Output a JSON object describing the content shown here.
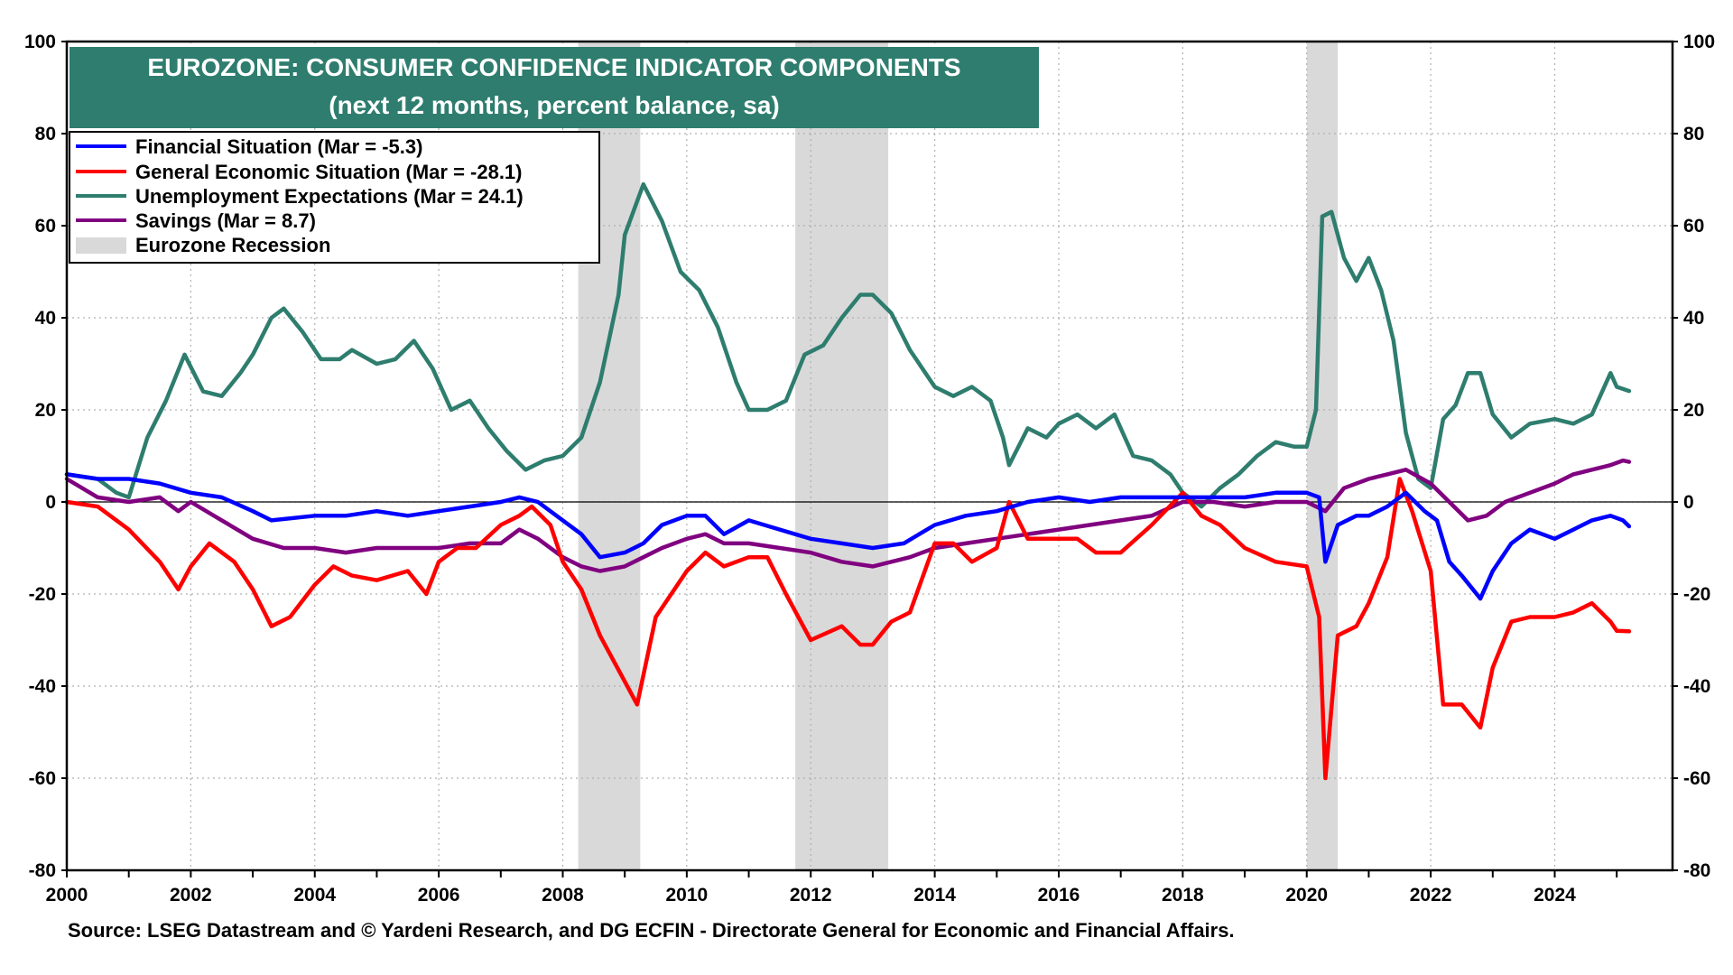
{
  "chart_data": {
    "type": "line",
    "title": "EUROZONE: CONSUMER CONFIDENCE INDICATOR COMPONENTS",
    "subtitle": "(next 12 months, percent balance, sa)",
    "source": "Source: LSEG Datastream and © Yardeni Research, and DG ECFIN - Directorate General for Economic and Financial Affairs.",
    "xlabel": "",
    "ylabel": "",
    "xlim": [
      2000,
      2025.9
    ],
    "ylim": [
      -80,
      100
    ],
    "x_ticks": [
      2000,
      2002,
      2004,
      2006,
      2008,
      2010,
      2012,
      2014,
      2016,
      2018,
      2020,
      2022,
      2024
    ],
    "y_ticks": [
      100,
      80,
      60,
      40,
      20,
      0,
      -20,
      -40,
      -60,
      -80
    ],
    "grid": true,
    "legend_position": "top-left",
    "recessions": [
      {
        "start": 2008.25,
        "end": 2009.25
      },
      {
        "start": 2011.75,
        "end": 2013.25
      },
      {
        "start": 2020.0,
        "end": 2020.5
      }
    ],
    "recession_label": "Eurozone Recession",
    "series": [
      {
        "name": "Financial Situation  (Mar = -5.3)",
        "color": "#0000ff",
        "points": [
          [
            2000,
            6
          ],
          [
            2000.5,
            5
          ],
          [
            2001,
            5
          ],
          [
            2001.5,
            4
          ],
          [
            2002,
            2
          ],
          [
            2002.5,
            1
          ],
          [
            2003,
            -2
          ],
          [
            2003.3,
            -4
          ],
          [
            2004,
            -3
          ],
          [
            2004.5,
            -3
          ],
          [
            2005,
            -2
          ],
          [
            2005.5,
            -3
          ],
          [
            2006,
            -2
          ],
          [
            2006.5,
            -1
          ],
          [
            2007,
            0
          ],
          [
            2007.3,
            1
          ],
          [
            2007.6,
            0
          ],
          [
            2008,
            -4
          ],
          [
            2008.3,
            -7
          ],
          [
            2008.6,
            -12
          ],
          [
            2009,
            -11
          ],
          [
            2009.3,
            -9
          ],
          [
            2009.6,
            -5
          ],
          [
            2010,
            -3
          ],
          [
            2010.3,
            -3
          ],
          [
            2010.6,
            -7
          ],
          [
            2011,
            -4
          ],
          [
            2011.5,
            -6
          ],
          [
            2012,
            -8
          ],
          [
            2012.5,
            -9
          ],
          [
            2013,
            -10
          ],
          [
            2013.5,
            -9
          ],
          [
            2014,
            -5
          ],
          [
            2014.5,
            -3
          ],
          [
            2015,
            -2
          ],
          [
            2015.5,
            0
          ],
          [
            2016,
            1
          ],
          [
            2016.5,
            0
          ],
          [
            2017,
            1
          ],
          [
            2017.5,
            1
          ],
          [
            2018,
            1
          ],
          [
            2018.5,
            1
          ],
          [
            2019,
            1
          ],
          [
            2019.5,
            2
          ],
          [
            2020,
            2
          ],
          [
            2020.2,
            1
          ],
          [
            2020.3,
            -13
          ],
          [
            2020.5,
            -5
          ],
          [
            2020.8,
            -3
          ],
          [
            2021,
            -3
          ],
          [
            2021.3,
            -1
          ],
          [
            2021.6,
            2
          ],
          [
            2021.9,
            -2
          ],
          [
            2022.1,
            -4
          ],
          [
            2022.3,
            -13
          ],
          [
            2022.5,
            -16
          ],
          [
            2022.8,
            -21
          ],
          [
            2023,
            -15
          ],
          [
            2023.3,
            -9
          ],
          [
            2023.6,
            -6
          ],
          [
            2024,
            -8
          ],
          [
            2024.3,
            -6
          ],
          [
            2024.6,
            -4
          ],
          [
            2024.9,
            -3
          ],
          [
            2025.1,
            -4
          ],
          [
            2025.2,
            -5.3
          ]
        ]
      },
      {
        "name": "General Economic Situation (Mar = -28.1)",
        "color": "#ff0000",
        "points": [
          [
            2000,
            0
          ],
          [
            2000.5,
            -1
          ],
          [
            2001,
            -6
          ],
          [
            2001.5,
            -13
          ],
          [
            2001.8,
            -19
          ],
          [
            2002,
            -14
          ],
          [
            2002.3,
            -9
          ],
          [
            2002.7,
            -13
          ],
          [
            2003,
            -19
          ],
          [
            2003.3,
            -27
          ],
          [
            2003.6,
            -25
          ],
          [
            2004,
            -18
          ],
          [
            2004.3,
            -14
          ],
          [
            2004.6,
            -16
          ],
          [
            2005,
            -17
          ],
          [
            2005.5,
            -15
          ],
          [
            2005.8,
            -20
          ],
          [
            2006,
            -13
          ],
          [
            2006.3,
            -10
          ],
          [
            2006.6,
            -10
          ],
          [
            2007,
            -5
          ],
          [
            2007.3,
            -3
          ],
          [
            2007.5,
            -1
          ],
          [
            2007.8,
            -5
          ],
          [
            2008,
            -13
          ],
          [
            2008.3,
            -19
          ],
          [
            2008.6,
            -29
          ],
          [
            2009,
            -39
          ],
          [
            2009.2,
            -44
          ],
          [
            2009.5,
            -25
          ],
          [
            2010,
            -15
          ],
          [
            2010.3,
            -11
          ],
          [
            2010.6,
            -14
          ],
          [
            2011,
            -12
          ],
          [
            2011.3,
            -12
          ],
          [
            2011.6,
            -20
          ],
          [
            2012,
            -30
          ],
          [
            2012.5,
            -27
          ],
          [
            2012.8,
            -31
          ],
          [
            2013,
            -31
          ],
          [
            2013.3,
            -26
          ],
          [
            2013.6,
            -24
          ],
          [
            2014,
            -9
          ],
          [
            2014.3,
            -9
          ],
          [
            2014.6,
            -13
          ],
          [
            2015,
            -10
          ],
          [
            2015.2,
            0
          ],
          [
            2015.5,
            -8
          ],
          [
            2016,
            -8
          ],
          [
            2016.3,
            -8
          ],
          [
            2016.6,
            -11
          ],
          [
            2017,
            -11
          ],
          [
            2017.5,
            -5
          ],
          [
            2018,
            2
          ],
          [
            2018.3,
            -3
          ],
          [
            2018.6,
            -5
          ],
          [
            2019,
            -10
          ],
          [
            2019.5,
            -13
          ],
          [
            2020,
            -14
          ],
          [
            2020.2,
            -25
          ],
          [
            2020.3,
            -60
          ],
          [
            2020.5,
            -29
          ],
          [
            2020.8,
            -27
          ],
          [
            2021,
            -22
          ],
          [
            2021.3,
            -12
          ],
          [
            2021.5,
            5
          ],
          [
            2021.7,
            -2
          ],
          [
            2022,
            -15
          ],
          [
            2022.2,
            -44
          ],
          [
            2022.5,
            -44
          ],
          [
            2022.8,
            -49
          ],
          [
            2023,
            -36
          ],
          [
            2023.3,
            -26
          ],
          [
            2023.6,
            -25
          ],
          [
            2024,
            -25
          ],
          [
            2024.3,
            -24
          ],
          [
            2024.6,
            -22
          ],
          [
            2024.9,
            -26
          ],
          [
            2025,
            -28
          ],
          [
            2025.2,
            -28.1
          ]
        ]
      },
      {
        "name": "Unemployment Expectations (Mar = 24.1)",
        "color": "#2e7d6e",
        "points": [
          [
            2000,
            6
          ],
          [
            2000.5,
            5
          ],
          [
            2000.8,
            2
          ],
          [
            2001,
            1
          ],
          [
            2001.3,
            14
          ],
          [
            2001.6,
            22
          ],
          [
            2001.9,
            32
          ],
          [
            2002.2,
            24
          ],
          [
            2002.5,
            23
          ],
          [
            2002.8,
            28
          ],
          [
            2003,
            32
          ],
          [
            2003.3,
            40
          ],
          [
            2003.5,
            42
          ],
          [
            2003.8,
            37
          ],
          [
            2004.1,
            31
          ],
          [
            2004.4,
            31
          ],
          [
            2004.6,
            33
          ],
          [
            2005,
            30
          ],
          [
            2005.3,
            31
          ],
          [
            2005.6,
            35
          ],
          [
            2005.9,
            29
          ],
          [
            2006.2,
            20
          ],
          [
            2006.5,
            22
          ],
          [
            2006.8,
            16
          ],
          [
            2007.1,
            11
          ],
          [
            2007.4,
            7
          ],
          [
            2007.7,
            9
          ],
          [
            2008,
            10
          ],
          [
            2008.3,
            14
          ],
          [
            2008.6,
            26
          ],
          [
            2008.9,
            45
          ],
          [
            2009,
            58
          ],
          [
            2009.3,
            69
          ],
          [
            2009.6,
            61
          ],
          [
            2009.9,
            50
          ],
          [
            2010.2,
            46
          ],
          [
            2010.5,
            38
          ],
          [
            2010.8,
            26
          ],
          [
            2011,
            20
          ],
          [
            2011.3,
            20
          ],
          [
            2011.6,
            22
          ],
          [
            2011.9,
            32
          ],
          [
            2012.2,
            34
          ],
          [
            2012.5,
            40
          ],
          [
            2012.8,
            45
          ],
          [
            2013,
            45
          ],
          [
            2013.3,
            41
          ],
          [
            2013.6,
            33
          ],
          [
            2014,
            25
          ],
          [
            2014.3,
            23
          ],
          [
            2014.6,
            25
          ],
          [
            2014.9,
            22
          ],
          [
            2015.1,
            14
          ],
          [
            2015.2,
            8
          ],
          [
            2015.5,
            16
          ],
          [
            2015.8,
            14
          ],
          [
            2016,
            17
          ],
          [
            2016.3,
            19
          ],
          [
            2016.6,
            16
          ],
          [
            2016.9,
            19
          ],
          [
            2017.2,
            10
          ],
          [
            2017.5,
            9
          ],
          [
            2017.8,
            6
          ],
          [
            2018,
            2
          ],
          [
            2018.3,
            -1
          ],
          [
            2018.6,
            3
          ],
          [
            2018.9,
            6
          ],
          [
            2019.2,
            10
          ],
          [
            2019.5,
            13
          ],
          [
            2019.8,
            12
          ],
          [
            2020,
            12
          ],
          [
            2020.15,
            20
          ],
          [
            2020.25,
            62
          ],
          [
            2020.4,
            63
          ],
          [
            2020.6,
            53
          ],
          [
            2020.8,
            48
          ],
          [
            2021,
            53
          ],
          [
            2021.2,
            46
          ],
          [
            2021.4,
            35
          ],
          [
            2021.6,
            15
          ],
          [
            2021.8,
            5
          ],
          [
            2022,
            3
          ],
          [
            2022.2,
            18
          ],
          [
            2022.4,
            21
          ],
          [
            2022.6,
            28
          ],
          [
            2022.8,
            28
          ],
          [
            2023,
            19
          ],
          [
            2023.3,
            14
          ],
          [
            2023.6,
            17
          ],
          [
            2024,
            18
          ],
          [
            2024.3,
            17
          ],
          [
            2024.6,
            19
          ],
          [
            2024.9,
            28
          ],
          [
            2025,
            25
          ],
          [
            2025.2,
            24.1
          ]
        ]
      },
      {
        "name": " Savings (Mar = 8.7)",
        "color": "#800080",
        "points": [
          [
            2000,
            5
          ],
          [
            2000.5,
            1
          ],
          [
            2001,
            0
          ],
          [
            2001.5,
            1
          ],
          [
            2001.8,
            -2
          ],
          [
            2002,
            0
          ],
          [
            2002.5,
            -4
          ],
          [
            2003,
            -8
          ],
          [
            2003.5,
            -10
          ],
          [
            2004,
            -10
          ],
          [
            2004.5,
            -11
          ],
          [
            2005,
            -10
          ],
          [
            2005.5,
            -10
          ],
          [
            2006,
            -10
          ],
          [
            2006.5,
            -9
          ],
          [
            2007,
            -9
          ],
          [
            2007.3,
            -6
          ],
          [
            2007.6,
            -8
          ],
          [
            2008,
            -12
          ],
          [
            2008.3,
            -14
          ],
          [
            2008.6,
            -15
          ],
          [
            2009,
            -14
          ],
          [
            2009.3,
            -12
          ],
          [
            2009.6,
            -10
          ],
          [
            2010,
            -8
          ],
          [
            2010.3,
            -7
          ],
          [
            2010.6,
            -9
          ],
          [
            2011,
            -9
          ],
          [
            2011.5,
            -10
          ],
          [
            2012,
            -11
          ],
          [
            2012.5,
            -13
          ],
          [
            2013,
            -14
          ],
          [
            2013.3,
            -13
          ],
          [
            2013.6,
            -12
          ],
          [
            2014,
            -10
          ],
          [
            2014.5,
            -9
          ],
          [
            2015,
            -8
          ],
          [
            2015.5,
            -7
          ],
          [
            2016,
            -6
          ],
          [
            2016.5,
            -5
          ],
          [
            2017,
            -4
          ],
          [
            2017.5,
            -3
          ],
          [
            2018,
            0
          ],
          [
            2018.5,
            0
          ],
          [
            2019,
            -1
          ],
          [
            2019.5,
            0
          ],
          [
            2020,
            0
          ],
          [
            2020.3,
            -2
          ],
          [
            2020.6,
            3
          ],
          [
            2021,
            5
          ],
          [
            2021.3,
            6
          ],
          [
            2021.6,
            7
          ],
          [
            2022,
            4
          ],
          [
            2022.3,
            0
          ],
          [
            2022.6,
            -4
          ],
          [
            2022.9,
            -3
          ],
          [
            2023.2,
            0
          ],
          [
            2023.6,
            2
          ],
          [
            2024,
            4
          ],
          [
            2024.3,
            6
          ],
          [
            2024.6,
            7
          ],
          [
            2024.9,
            8
          ],
          [
            2025.1,
            9
          ],
          [
            2025.2,
            8.7
          ]
        ]
      }
    ]
  }
}
